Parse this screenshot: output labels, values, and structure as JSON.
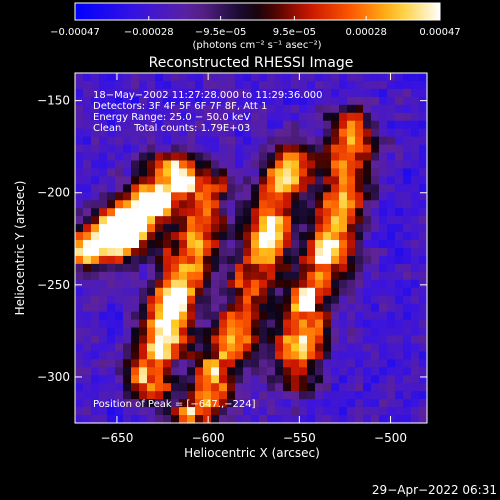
{
  "chart_data": {
    "type": "heatmap",
    "title": "Reconstructed RHESSI Image",
    "xlabel": "Heliocentric X (arcsec)",
    "ylabel": "Heliocentric Y (arcsec)",
    "xlim": [
      -673,
      -480
    ],
    "ylim": [
      -325,
      -135
    ],
    "x_ticks": [
      -650,
      -600,
      -550,
      -500
    ],
    "x_tick_labels": [
      "−650",
      "−600",
      "−550",
      "−500"
    ],
    "y_ticks": [
      -150,
      -200,
      -250,
      -300
    ],
    "y_tick_labels": [
      "−150",
      "−200",
      "−250",
      "−300"
    ],
    "colorbar": {
      "label": "(photons cm⁻² s⁻¹ asec⁻²)",
      "range": [
        -0.00047,
        0.00047
      ],
      "ticks": [
        -0.00047,
        -0.00028,
        -9.5e-05,
        9.5e-05,
        0.00028,
        0.00047
      ],
      "tick_labels": [
        "−0.00047",
        "−0.00028",
        "−9.5e−05",
        "9.5e−05",
        "0.00028",
        "0.00047"
      ]
    },
    "annotations": [
      "18−May−2002 11:27:28.000 to 11:29:36.000",
      "Detectors: 3F 4F 5F 6F 7F 8F, Att 1",
      "Energy Range: 25.0 − 50.0 keV",
      "Clean    Total counts: 1.79E+03"
    ],
    "peak_label": "Position of Peak = [−647.,−224]",
    "peak": [
      -647,
      -224
    ],
    "bright_ridges": [
      {
        "points": [
          [
            -665,
            -230
          ],
          [
            -650,
            -222
          ],
          [
            -635,
            -210
          ],
          [
            -622,
            -192
          ]
        ],
        "peak": 1.0
      },
      {
        "points": [
          [
            -632,
            -300
          ],
          [
            -622,
            -270
          ],
          [
            -614,
            -245
          ],
          [
            -606,
            -222
          ],
          [
            -602,
            -200
          ]
        ],
        "peak": 0.8
      },
      {
        "points": [
          [
            -606,
            -318
          ],
          [
            -592,
            -290
          ],
          [
            -580,
            -262
          ],
          [
            -572,
            -240
          ],
          [
            -566,
            -215
          ],
          [
            -555,
            -185
          ]
        ],
        "peak": 0.72
      },
      {
        "points": [
          [
            -552,
            -295
          ],
          [
            -547,
            -265
          ],
          [
            -537,
            -240
          ],
          [
            -528,
            -205
          ],
          [
            -522,
            -168
          ]
        ],
        "peak": 0.78
      }
    ]
  },
  "footer": {
    "timestamp": "29−Apr−2022 06:31"
  }
}
